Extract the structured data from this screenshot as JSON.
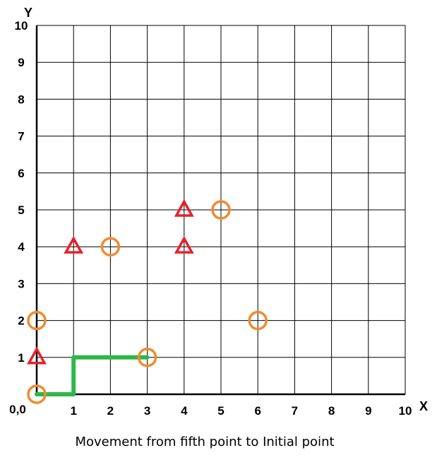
{
  "chart_data": {
    "type": "scatter",
    "title": "",
    "xlabel": "X",
    "ylabel": "Y",
    "xlim": [
      0,
      10
    ],
    "ylim": [
      0,
      10
    ],
    "grid": true,
    "origin_label": "0,0",
    "x_ticks": [
      "1",
      "2",
      "3",
      "4",
      "5",
      "6",
      "7",
      "8",
      "9",
      "10"
    ],
    "y_ticks": [
      "1",
      "2",
      "3",
      "4",
      "5",
      "6",
      "7",
      "8",
      "9",
      "10"
    ],
    "series": [
      {
        "marker": "circle",
        "color": "#f28a2e",
        "points": [
          [
            0,
            0
          ],
          [
            0,
            2
          ],
          [
            2,
            4
          ],
          [
            3,
            1
          ],
          [
            5,
            5
          ],
          [
            6,
            2
          ]
        ]
      },
      {
        "marker": "triangle",
        "color": "#e8202a",
        "points": [
          [
            0,
            1
          ],
          [
            1,
            4
          ],
          [
            4,
            4
          ],
          [
            4,
            5
          ]
        ]
      }
    ],
    "path": {
      "color": "#2db84a",
      "points": [
        [
          3,
          1
        ],
        [
          1,
          1
        ],
        [
          1,
          0
        ],
        [
          0,
          0
        ]
      ]
    }
  },
  "caption": "Movement from fifth point to Initial point"
}
